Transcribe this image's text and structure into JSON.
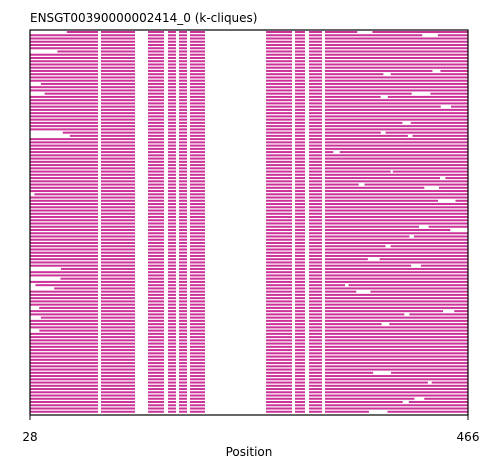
{
  "chart_data": {
    "type": "heatmap",
    "title": "ENSGT00390000002414_0 (k-cliques)",
    "xlabel": "Position",
    "ylabel": "",
    "x_range": [
      28,
      466
    ],
    "xticks": [
      "28",
      "466"
    ],
    "grid": false,
    "legend": "none",
    "colors": {
      "bar": "#cc3399",
      "background": "#ffffff",
      "axes": "#000000"
    },
    "n_rows": 118,
    "row_base_segments": [
      [
        28,
        96
      ],
      [
        99,
        133
      ],
      [
        146,
        162
      ],
      [
        166,
        174
      ],
      [
        177,
        185
      ],
      [
        188,
        203
      ],
      [
        264,
        290
      ],
      [
        293,
        303
      ],
      [
        307,
        320
      ],
      [
        323,
        466
      ]
    ],
    "gap_positions": [
      96,
      99,
      133,
      146,
      162,
      166,
      174,
      177,
      185,
      188,
      203,
      264,
      290,
      293,
      303,
      307,
      320,
      323
    ]
  }
}
